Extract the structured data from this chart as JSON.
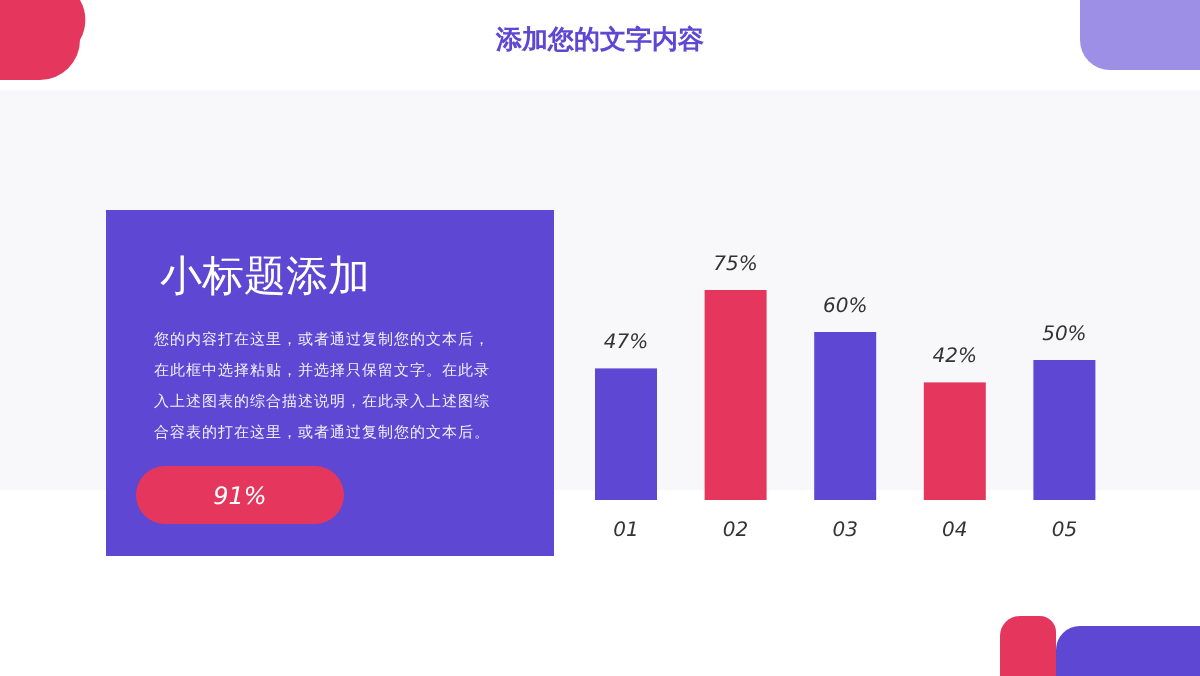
{
  "chart_data": [
    {
      "type": "other",
      "title": "小标题添加",
      "color": "#5d47d3",
      "annotations": [
        "您的内容打在这里，或者通过复制您的文本后，",
        "在此框中选择粘贴，并选择只保留文字。在此录",
        "入上述图表的综合描述说明，在此录入上述图综",
        "合容表的打在这里，或者通过复制您的文本后。",
        "91%"
      ]
    },
    {
      "type": "bar",
      "title": "添加您的文字内容",
      "categories": [
        "01",
        "02",
        "03",
        "04",
        "05"
      ],
      "values": [
        47,
        75,
        60,
        42,
        50
      ],
      "colors": [
        "#5d47d3",
        "#e5375e",
        "#5d47d3",
        "#e5375e",
        "#5d47d3"
      ],
      "value_labels": [
        "47%",
        "75%",
        "60%",
        "42%",
        "50%"
      ]
    }
  ]
}
